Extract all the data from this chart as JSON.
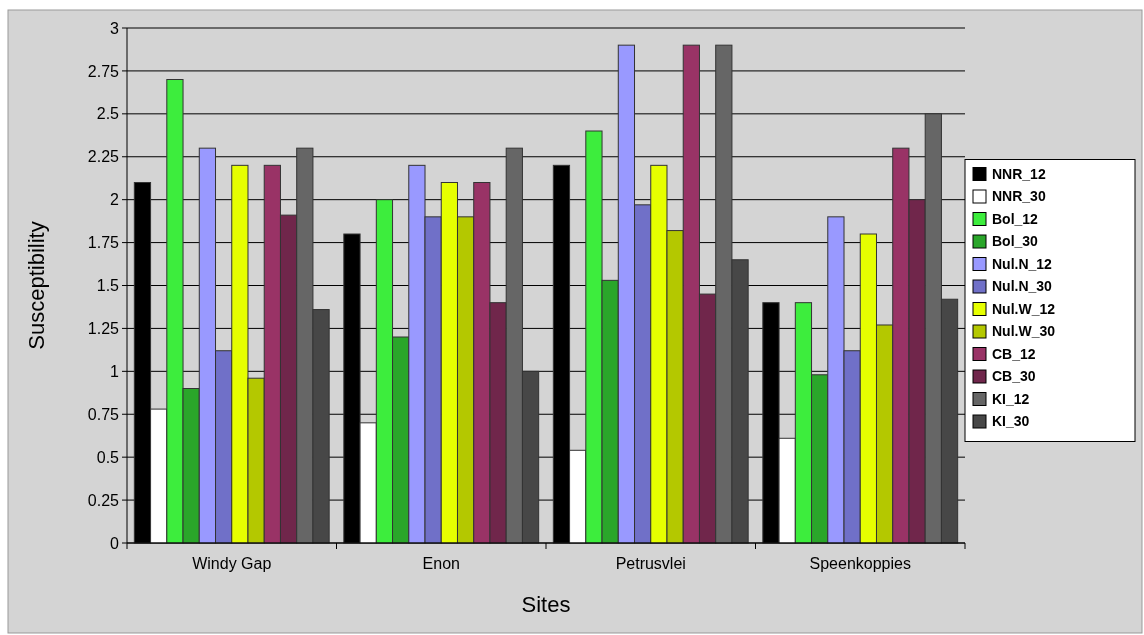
{
  "chart_data": {
    "type": "bar",
    "xlabel": "Sites",
    "ylabel": "Susceptibility",
    "categories": [
      "Windy Gap",
      "Enon",
      "Petrusvlei",
      "Speenkoppies"
    ],
    "ylim": [
      0,
      3
    ],
    "yticks": [
      0,
      0.25,
      0.5,
      0.75,
      1,
      1.25,
      1.5,
      1.75,
      2,
      2.25,
      2.5,
      2.75,
      3
    ],
    "grid": "y",
    "legend": "right",
    "series": [
      {
        "name": "NNR_12",
        "color": "#000000",
        "values": [
          2.1,
          1.8,
          2.2,
          1.4
        ]
      },
      {
        "name": "NNR_30",
        "color": "#ffffff",
        "values": [
          0.78,
          0.7,
          0.54,
          0.61
        ]
      },
      {
        "name": "Bol_12",
        "color": "#3ded3d",
        "values": [
          2.7,
          2.0,
          2.4,
          1.4
        ]
      },
      {
        "name": "Bol_30",
        "color": "#2aa62a",
        "values": [
          0.9,
          1.2,
          1.53,
          0.98
        ]
      },
      {
        "name": "Nul.N_12",
        "color": "#9999ff",
        "values": [
          2.3,
          2.2,
          2.9,
          1.9
        ]
      },
      {
        "name": "Nul.N_30",
        "color": "#7070c8",
        "values": [
          1.12,
          1.9,
          1.97,
          1.12
        ]
      },
      {
        "name": "Nul.W_12",
        "color": "#e6ff00",
        "values": [
          2.2,
          2.1,
          2.2,
          1.8
        ]
      },
      {
        "name": "Nul.W_30",
        "color": "#b4c800",
        "values": [
          0.96,
          1.9,
          1.82,
          1.27
        ]
      },
      {
        "name": "CB_12",
        "color": "#993366",
        "values": [
          2.2,
          2.1,
          2.9,
          2.3
        ]
      },
      {
        "name": "CB_30",
        "color": "#70264b",
        "values": [
          1.91,
          1.4,
          1.45,
          2.0
        ]
      },
      {
        "name": "KI_12",
        "color": "#666666",
        "values": [
          2.3,
          2.3,
          2.9,
          2.5
        ]
      },
      {
        "name": "KI_30",
        "color": "#474747",
        "values": [
          1.36,
          1.0,
          1.65,
          1.42
        ]
      }
    ]
  }
}
